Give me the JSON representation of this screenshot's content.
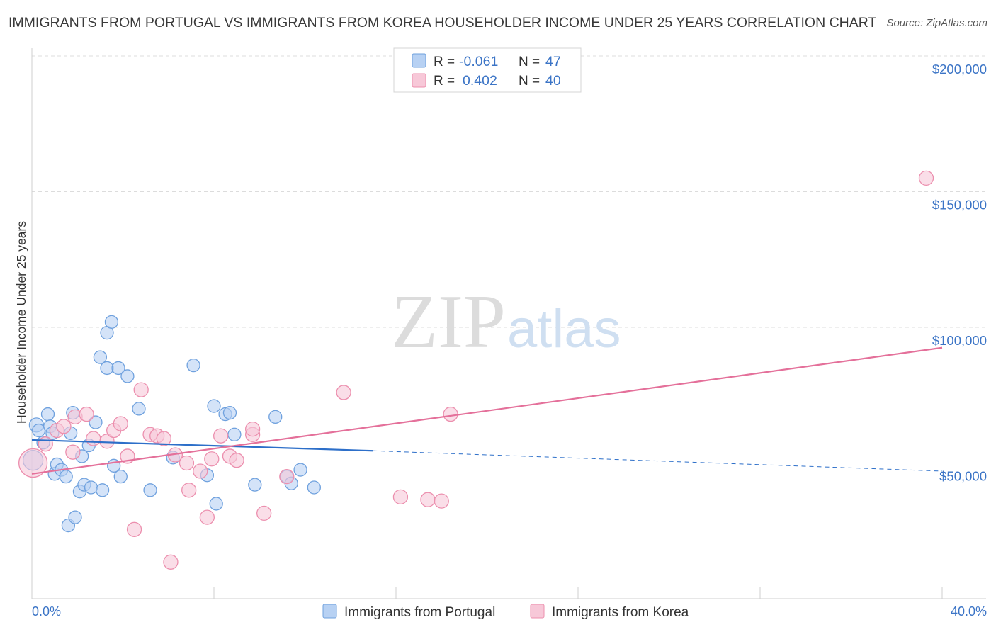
{
  "header": {
    "title": "IMMIGRANTS FROM PORTUGAL VS IMMIGRANTS FROM KOREA HOUSEHOLDER INCOME UNDER 25 YEARS CORRELATION CHART",
    "source": "Source: ZipAtlas.com"
  },
  "watermark": {
    "zip": "ZIP",
    "atlas": "atlas"
  },
  "stats": {
    "portugal": {
      "r_label": "R =",
      "r": "-0.061",
      "n_label": "N =",
      "n": "47"
    },
    "korea": {
      "r_label": "R =",
      "r": "0.402",
      "n_label": "N =",
      "n": "40"
    }
  },
  "chart_data": {
    "type": "scatter",
    "title": "IMMIGRANTS FROM PORTUGAL VS IMMIGRANTS FROM KOREA HOUSEHOLDER INCOME UNDER 25 YEARS CORRELATION CHART",
    "xlabel": "",
    "ylabel": "Householder Income Under 25 years",
    "xlim": [
      0,
      40
    ],
    "ylim": [
      0,
      210000
    ],
    "x_tick_labels": [
      "0.0%",
      "40.0%"
    ],
    "y_ticks": [
      {
        "value": 50000,
        "label": "$50,000"
      },
      {
        "value": 100000,
        "label": "$100,000"
      },
      {
        "value": 150000,
        "label": "$150,000"
      },
      {
        "value": 200000,
        "label": "$200,000"
      }
    ],
    "grid": "horizontal dashed",
    "legend_position": "bottom-center",
    "series": [
      {
        "name": "Immigrants from Portugal",
        "color": "#6fa1de",
        "fill": "#b7d1f3",
        "r": -0.061,
        "n": 47,
        "trend": {
          "x0": 0,
          "y0": 58500,
          "x1": 15,
          "y1": 54500,
          "dashed_to_x": 40,
          "dashed_to_y": 47000
        },
        "points": [
          [
            0.05,
            51000,
            14
          ],
          [
            0.2,
            64000,
            10
          ],
          [
            0.3,
            62000,
            9
          ],
          [
            0.5,
            57500,
            9
          ],
          [
            0.7,
            68000,
            9
          ],
          [
            0.8,
            63500,
            9
          ],
          [
            0.9,
            61000,
            9
          ],
          [
            1.0,
            46000,
            9
          ],
          [
            1.1,
            49500,
            9
          ],
          [
            1.3,
            47500,
            9
          ],
          [
            1.5,
            45000,
            9
          ],
          [
            1.6,
            27000,
            9
          ],
          [
            1.7,
            61000,
            9
          ],
          [
            1.8,
            68500,
            9
          ],
          [
            1.9,
            30000,
            9
          ],
          [
            2.1,
            39500,
            9
          ],
          [
            2.2,
            52500,
            9
          ],
          [
            2.3,
            42000,
            9
          ],
          [
            2.5,
            56500,
            9
          ],
          [
            2.6,
            41000,
            9
          ],
          [
            2.8,
            65000,
            9
          ],
          [
            3.0,
            89000,
            9
          ],
          [
            3.1,
            40000,
            9
          ],
          [
            3.3,
            85000,
            9
          ],
          [
            3.3,
            98000,
            9
          ],
          [
            3.5,
            102000,
            9
          ],
          [
            3.6,
            49000,
            9
          ],
          [
            3.8,
            85000,
            9
          ],
          [
            3.9,
            45000,
            9
          ],
          [
            4.2,
            82000,
            9
          ],
          [
            4.7,
            70000,
            9
          ],
          [
            5.2,
            40000,
            9
          ],
          [
            6.2,
            52000,
            9
          ],
          [
            7.1,
            86000,
            9
          ],
          [
            7.7,
            45500,
            9
          ],
          [
            8.0,
            71000,
            9
          ],
          [
            8.1,
            35000,
            9
          ],
          [
            8.5,
            68000,
            9
          ],
          [
            8.7,
            68500,
            9
          ],
          [
            8.9,
            60500,
            9
          ],
          [
            9.8,
            42000,
            9
          ],
          [
            10.7,
            67000,
            9
          ],
          [
            11.2,
            45000,
            9
          ],
          [
            11.4,
            42500,
            9
          ],
          [
            11.8,
            47500,
            9
          ],
          [
            12.4,
            41000,
            9
          ]
        ]
      },
      {
        "name": "Immigrants from Korea",
        "color": "#ec8fae",
        "fill": "#f7c8d8",
        "r": 0.402,
        "n": 40,
        "trend": {
          "x0": 0,
          "y0": 46000,
          "x1": 40,
          "y1": 92500
        },
        "points": [
          [
            0.05,
            50000,
            20
          ],
          [
            0.6,
            57000,
            10
          ],
          [
            1.1,
            62000,
            10
          ],
          [
            1.4,
            63500,
            10
          ],
          [
            1.8,
            54000,
            10
          ],
          [
            1.9,
            67000,
            10
          ],
          [
            2.4,
            68000,
            10
          ],
          [
            2.7,
            59000,
            10
          ],
          [
            3.3,
            58000,
            10
          ],
          [
            3.6,
            62000,
            10
          ],
          [
            3.9,
            64500,
            10
          ],
          [
            4.2,
            52500,
            10
          ],
          [
            4.5,
            25500,
            10
          ],
          [
            4.8,
            77000,
            10
          ],
          [
            5.2,
            60500,
            10
          ],
          [
            5.5,
            60000,
            10
          ],
          [
            5.8,
            59000,
            10
          ],
          [
            6.1,
            13500,
            10
          ],
          [
            6.3,
            53000,
            10
          ],
          [
            6.8,
            50000,
            10
          ],
          [
            6.9,
            40000,
            10
          ],
          [
            7.4,
            47000,
            10
          ],
          [
            7.7,
            30000,
            10
          ],
          [
            7.9,
            51500,
            10
          ],
          [
            8.3,
            60000,
            10
          ],
          [
            8.7,
            52500,
            10
          ],
          [
            9.0,
            51000,
            10
          ],
          [
            9.7,
            60500,
            10
          ],
          [
            9.7,
            62500,
            10
          ],
          [
            10.2,
            31500,
            10
          ],
          [
            11.2,
            45000,
            10
          ],
          [
            13.7,
            76000,
            10
          ],
          [
            16.2,
            37500,
            10
          ],
          [
            17.4,
            36500,
            10
          ],
          [
            18.0,
            36000,
            10
          ],
          [
            18.4,
            68000,
            10
          ],
          [
            39.3,
            155000,
            10
          ]
        ]
      }
    ]
  }
}
